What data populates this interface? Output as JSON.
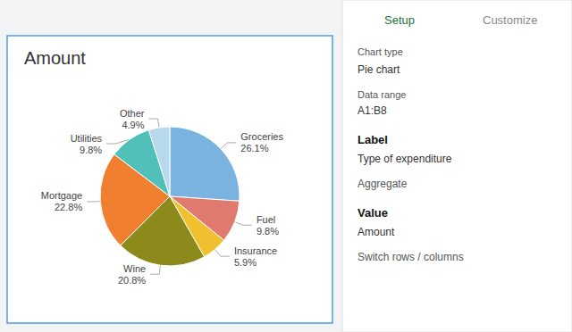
{
  "chart_data": {
    "type": "pie",
    "title": "Amount",
    "categories": [
      "Groceries",
      "Fuel",
      "Insurance",
      "Wine",
      "Mortgage",
      "Utilities",
      "Other"
    ],
    "values": [
      26.1,
      9.8,
      5.9,
      20.8,
      22.8,
      9.8,
      4.9
    ],
    "value_labels": [
      "26.1%",
      "9.8%",
      "5.9%",
      "20.8%",
      "22.8%",
      "9.8%",
      "4.9%"
    ],
    "colors": [
      "#7ab3e0",
      "#e07a6e",
      "#f0c030",
      "#8b8a1a",
      "#f08030",
      "#50c0b8",
      "#b8d8ec"
    ],
    "data_labels": true,
    "annotations": [
      "Setup",
      "Customize",
      "Chart type",
      "Pie chart",
      "Data range",
      "A1:B8",
      "Label",
      "Type of expenditure",
      "Aggregate",
      "Value",
      "Amount",
      "Switch rows / columns"
    ]
  }
}
